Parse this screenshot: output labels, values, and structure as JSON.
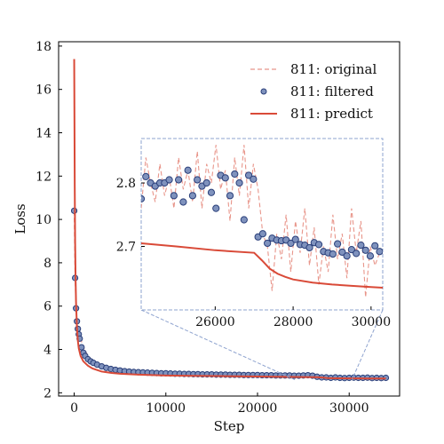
{
  "chart_data": {
    "type": "line",
    "xlabel": "Step",
    "ylabel": "Loss",
    "xlim": [
      -1700,
      35500
    ],
    "ylim": [
      1.85,
      18.2
    ],
    "x_ticks": [
      0,
      10000,
      20000,
      30000
    ],
    "x_tick_labels": [
      "0",
      "10000",
      "20000",
      "30000"
    ],
    "y_ticks": [
      2,
      4,
      6,
      8,
      10,
      12,
      14,
      16,
      18
    ],
    "y_tick_labels": [
      "2",
      "4",
      "6",
      "8",
      "10",
      "12",
      "14",
      "16",
      "18"
    ],
    "legend": {
      "placement": "top-right",
      "entries": [
        {
          "label": "811: original",
          "style": "dashed-line",
          "color": "#e8958a"
        },
        {
          "label": "811: filtered",
          "style": "marker",
          "color": "#7f92bd"
        },
        {
          "label": "811: predict",
          "style": "solid-line",
          "color": "#d94a38"
        }
      ]
    },
    "series": [
      {
        "name": "811: original",
        "color": "#e8958a",
        "x": [
          0,
          100,
          200,
          300,
          500,
          700,
          1000,
          1500,
          2000,
          3000,
          4000,
          5000,
          6000,
          8000,
          10000,
          12000,
          15000,
          18000,
          21000,
          24000,
          27000,
          30000,
          33000,
          34000
        ],
        "values": [
          10.4,
          7.3,
          5.9,
          5.2,
          4.8,
          4.5,
          4.1,
          3.7,
          3.5,
          3.3,
          3.15,
          3.05,
          3.0,
          2.95,
          2.92,
          2.9,
          2.87,
          2.85,
          2.84,
          2.83,
          2.72,
          2.7,
          2.69,
          2.69
        ]
      },
      {
        "name": "811: filtered",
        "color": "#7f92bd",
        "edge_color": "#2a3f7a",
        "x": [
          0,
          100,
          200,
          300,
          400,
          500,
          600,
          800,
          1000,
          1200,
          1500,
          1800,
          2100,
          2500,
          3000,
          3500,
          4000,
          4500,
          5000,
          5500,
          6000,
          6500,
          7000,
          7500,
          8000,
          8500,
          9000,
          9500,
          10000,
          10500,
          11000,
          11500,
          12000,
          12500,
          13000,
          13500,
          14000,
          14500,
          15000,
          15500,
          16000,
          16500,
          17000,
          17500,
          18000,
          18500,
          19000,
          19500,
          20000,
          20500,
          21000,
          21500,
          22000,
          22500,
          23000,
          23500,
          24000,
          24500,
          25000,
          25500,
          26000,
          26500,
          27000,
          27500,
          28000,
          28500,
          29000,
          29500,
          30000,
          30500,
          31000,
          31500,
          32000,
          32500,
          33000,
          33500,
          34000
        ],
        "values": [
          10.4,
          7.3,
          5.9,
          5.3,
          4.95,
          4.7,
          4.5,
          4.1,
          3.85,
          3.7,
          3.55,
          3.45,
          3.38,
          3.3,
          3.22,
          3.15,
          3.1,
          3.06,
          3.03,
          3.0,
          2.98,
          2.96,
          2.95,
          2.94,
          2.93,
          2.92,
          2.91,
          2.9,
          2.9,
          2.89,
          2.88,
          2.88,
          2.87,
          2.87,
          2.86,
          2.86,
          2.85,
          2.85,
          2.85,
          2.84,
          2.84,
          2.84,
          2.83,
          2.83,
          2.83,
          2.82,
          2.82,
          2.82,
          2.82,
          2.81,
          2.81,
          2.81,
          2.8,
          2.8,
          2.8,
          2.8,
          2.79,
          2.79,
          2.8,
          2.81,
          2.79,
          2.74,
          2.71,
          2.71,
          2.69,
          2.71,
          2.69,
          2.68,
          2.69,
          2.7,
          2.69,
          2.69,
          2.7,
          2.68,
          2.69,
          2.68,
          2.69
        ]
      },
      {
        "name": "811: predict",
        "color": "#d94a38",
        "x": [
          0,
          30,
          60,
          100,
          150,
          200,
          300,
          400,
          500,
          700,
          1000,
          1500,
          2000,
          3000,
          4000,
          5000,
          7000,
          10000,
          13000,
          16000,
          20000,
          24000,
          26500,
          27200,
          27600,
          28000,
          28500,
          29000,
          30000,
          31000,
          32000,
          33000,
          34000
        ],
        "values": [
          17.4,
          14.5,
          11.5,
          9.0,
          7.3,
          6.2,
          5.0,
          4.4,
          4.05,
          3.7,
          3.45,
          3.25,
          3.12,
          2.98,
          2.92,
          2.88,
          2.84,
          2.8,
          2.78,
          2.77,
          2.75,
          2.73,
          2.72,
          2.7,
          2.68,
          2.675,
          2.67,
          2.668,
          2.665,
          2.663,
          2.661,
          2.66,
          2.66
        ]
      }
    ],
    "inset": {
      "xlim": [
        24100,
        30300
      ],
      "ylim": [
        2.6,
        2.87
      ],
      "x_ticks": [
        26000,
        28000,
        30000
      ],
      "x_tick_labels": [
        "26000",
        "28000",
        "30000"
      ],
      "y_ticks": [
        2.7,
        2.8
      ],
      "y_tick_labels": [
        "2.7",
        "2.8"
      ],
      "original": {
        "x": [
          24100,
          24220,
          24340,
          24460,
          24580,
          24700,
          24820,
          24940,
          25060,
          25180,
          25300,
          25420,
          25540,
          25660,
          25780,
          25900,
          26020,
          26140,
          26260,
          26380,
          26500,
          26620,
          26740,
          26860,
          26980,
          27100,
          27220,
          27340,
          27460,
          27580,
          27700,
          27820,
          27940,
          28060,
          28180,
          28300,
          28420,
          28540,
          28660,
          28780,
          28900,
          29020,
          29140,
          29260,
          29380,
          29500,
          29620,
          29740,
          29860,
          29980,
          30100,
          30220
        ],
        "values": [
          2.76,
          2.84,
          2.8,
          2.77,
          2.83,
          2.78,
          2.81,
          2.76,
          2.84,
          2.79,
          2.82,
          2.77,
          2.85,
          2.76,
          2.83,
          2.8,
          2.86,
          2.79,
          2.82,
          2.74,
          2.84,
          2.78,
          2.86,
          2.76,
          2.83,
          2.79,
          2.72,
          2.7,
          2.63,
          2.72,
          2.68,
          2.75,
          2.66,
          2.74,
          2.69,
          2.76,
          2.67,
          2.73,
          2.64,
          2.7,
          2.66,
          2.75,
          2.68,
          2.72,
          2.65,
          2.76,
          2.69,
          2.74,
          2.62,
          2.7,
          2.67,
          2.69
        ]
      },
      "filtered": {
        "x": [
          24100,
          24220,
          24340,
          24460,
          24580,
          24700,
          24820,
          24940,
          25060,
          25180,
          25300,
          25420,
          25540,
          25660,
          25780,
          25900,
          26020,
          26140,
          26260,
          26380,
          26500,
          26620,
          26740,
          26860,
          26980,
          27100,
          27220,
          27340,
          27460,
          27580,
          27700,
          27820,
          27940,
          28060,
          28180,
          28300,
          28420,
          28540,
          28660,
          28780,
          28900,
          29020,
          29140,
          29260,
          29380,
          29500,
          29620,
          29740,
          29860,
          29980,
          30100,
          30220
        ],
        "values": [
          2.775,
          2.81,
          2.8,
          2.795,
          2.8,
          2.8,
          2.805,
          2.78,
          2.805,
          2.77,
          2.82,
          2.78,
          2.805,
          2.795,
          2.8,
          2.785,
          2.76,
          2.812,
          2.808,
          2.78,
          2.814,
          2.8,
          2.742,
          2.812,
          2.806,
          2.715,
          2.72,
          2.705,
          2.713,
          2.71,
          2.709,
          2.71,
          2.705,
          2.711,
          2.703,
          2.702,
          2.698,
          2.706,
          2.703,
          2.692,
          2.69,
          2.688,
          2.704,
          2.691,
          2.685,
          2.695,
          2.689,
          2.702,
          2.694,
          2.685,
          2.701,
          2.692
        ]
      },
      "predict": {
        "x": [
          24100,
          25000,
          26000,
          27000,
          27200,
          27400,
          27600,
          27800,
          28000,
          28500,
          29000,
          29500,
          30000,
          30300
        ],
        "values": [
          2.705,
          2.7,
          2.694,
          2.69,
          2.678,
          2.665,
          2.657,
          2.652,
          2.648,
          2.643,
          2.64,
          2.638,
          2.636,
          2.635
        ]
      }
    }
  }
}
